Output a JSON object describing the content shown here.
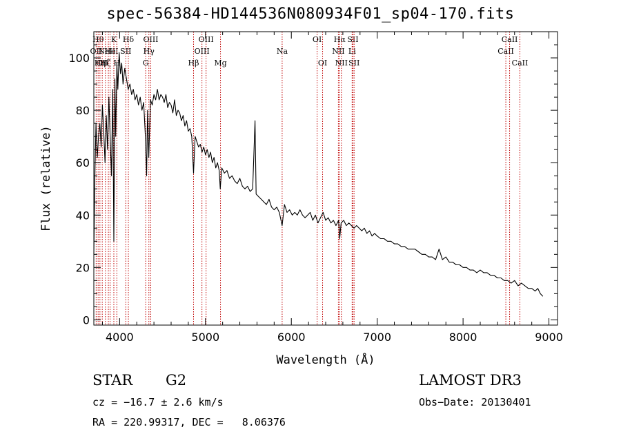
{
  "chart_data": {
    "type": "line",
    "title": "spec-56384-HD144536N080934F01_sp04-170.fits",
    "xlabel": "Wavelength (Å)",
    "ylabel": "Flux (relative)",
    "xlim": [
      3700,
      9100
    ],
    "ylim": [
      -2,
      110
    ],
    "xticks": [
      4000,
      5000,
      6000,
      7000,
      8000,
      9000
    ],
    "xtick_labels": [
      "4000",
      "5000",
      "6000",
      "7000",
      "8000",
      "9000"
    ],
    "yticks": [
      0,
      20,
      40,
      60,
      80,
      100
    ],
    "ytick_labels": [
      "0",
      "20",
      "40",
      "60",
      "80",
      "100"
    ],
    "series": [
      {
        "name": "spectrum",
        "color": "#000000",
        "x": [
          3700,
          3712,
          3725,
          3740,
          3755,
          3770,
          3785,
          3800,
          3815,
          3830,
          3845,
          3860,
          3875,
          3890,
          3905,
          3920,
          3933,
          3945,
          3955,
          3968,
          3980,
          3995,
          4010,
          4025,
          4040,
          4060,
          4080,
          4100,
          4120,
          4140,
          4160,
          4180,
          4200,
          4220,
          4240,
          4260,
          4280,
          4300,
          4315,
          4325,
          4340,
          4360,
          4380,
          4400,
          4420,
          4440,
          4460,
          4480,
          4500,
          4520,
          4540,
          4560,
          4580,
          4600,
          4620,
          4640,
          4660,
          4680,
          4700,
          4720,
          4740,
          4760,
          4780,
          4800,
          4820,
          4840,
          4861,
          4880,
          4900,
          4920,
          4940,
          4960,
          4980,
          5000,
          5020,
          5040,
          5060,
          5080,
          5100,
          5120,
          5140,
          5160,
          5172,
          5190,
          5220,
          5250,
          5280,
          5310,
          5340,
          5370,
          5400,
          5430,
          5460,
          5490,
          5520,
          5550,
          5577,
          5590,
          5620,
          5650,
          5680,
          5710,
          5740,
          5770,
          5800,
          5830,
          5860,
          5893,
          5920,
          5950,
          5980,
          6010,
          6040,
          6070,
          6100,
          6130,
          6160,
          6190,
          6220,
          6250,
          6280,
          6310,
          6340,
          6370,
          6400,
          6430,
          6460,
          6490,
          6520,
          6550,
          6563,
          6580,
          6610,
          6640,
          6670,
          6700,
          6730,
          6760,
          6790,
          6820,
          6850,
          6880,
          6910,
          6940,
          6970,
          7000,
          7040,
          7080,
          7120,
          7160,
          7200,
          7240,
          7280,
          7320,
          7360,
          7400,
          7440,
          7480,
          7520,
          7560,
          7600,
          7640,
          7680,
          7720,
          7760,
          7800,
          7840,
          7880,
          7920,
          7960,
          8000,
          8040,
          8080,
          8120,
          8160,
          8200,
          8240,
          8280,
          8320,
          8360,
          8400,
          8440,
          8480,
          8520,
          8560,
          8600,
          8640,
          8680,
          8720,
          8760,
          8800,
          8840,
          8870,
          8900,
          8930
        ],
        "values": [
          25,
          55,
          75,
          62,
          70,
          75,
          66,
          82,
          72,
          60,
          78,
          65,
          85,
          70,
          55,
          88,
          30,
          92,
          70,
          98,
          88,
          102,
          94,
          98,
          90,
          96,
          92,
          88,
          90,
          86,
          88,
          84,
          86,
          82,
          85,
          80,
          83,
          70,
          55,
          80,
          62,
          84,
          82,
          86,
          84,
          88,
          84,
          86,
          85,
          83,
          86,
          81,
          83,
          82,
          79,
          84,
          78,
          80,
          79,
          76,
          78,
          74,
          76,
          72,
          73,
          70,
          56,
          70,
          68,
          66,
          67,
          64,
          66,
          63,
          65,
          62,
          64,
          60,
          62,
          58,
          60,
          57,
          50,
          58,
          56,
          57,
          54,
          55,
          53,
          52,
          54,
          51,
          50,
          51,
          49,
          50,
          76,
          48,
          47,
          46,
          45,
          44,
          46,
          43,
          42,
          43,
          41,
          36,
          44,
          41,
          42,
          40,
          41,
          40,
          42,
          40,
          39,
          40,
          41,
          38,
          40,
          37,
          39,
          41,
          38,
          39,
          37,
          38,
          36,
          38,
          31,
          37,
          38,
          36,
          37,
          36,
          35,
          36,
          35,
          34,
          35,
          33,
          34,
          32,
          33,
          32,
          31,
          31,
          30,
          30,
          29,
          29,
          28,
          28,
          27,
          27,
          27,
          26,
          25,
          25,
          24,
          24,
          23,
          27,
          23,
          24,
          22,
          22,
          21,
          21,
          20,
          20,
          19,
          19,
          18,
          19,
          18,
          18,
          17,
          17,
          16,
          16,
          15,
          15,
          14,
          15,
          13,
          14,
          13,
          12,
          12,
          11,
          12,
          10,
          9
        ]
      }
    ],
    "line_markers": [
      {
        "x": 3727,
        "label": "OII",
        "row": 1
      },
      {
        "x": 3750,
        "label": "Hθ",
        "row": 0
      },
      {
        "x": 3771,
        "label": "Hη",
        "row": 2
      },
      {
        "x": 3798,
        "label": "OII",
        "row": 2
      },
      {
        "x": 3835,
        "label": "Hζ",
        "row": 2
      },
      {
        "x": 3869,
        "label": "NeIII",
        "row": 1
      },
      {
        "x": 3889,
        "label": "He",
        "row": 1
      },
      {
        "x": 3933,
        "label": "K",
        "row": 0
      },
      {
        "x": 3968,
        "label": "H",
        "row": 2
      },
      {
        "x": 4072,
        "label": "SII",
        "row": 1
      },
      {
        "x": 4102,
        "label": "Hδ",
        "row": 0
      },
      {
        "x": 4304,
        "label": "G",
        "row": 2
      },
      {
        "x": 4341,
        "label": "Hγ",
        "row": 1
      },
      {
        "x": 4363,
        "label": "OIII",
        "row": 0
      },
      {
        "x": 4861,
        "label": "Hβ",
        "row": 2
      },
      {
        "x": 4959,
        "label": "OIII",
        "row": 1
      },
      {
        "x": 5007,
        "label": "OIII",
        "row": 0
      },
      {
        "x": 5175,
        "label": "Mg",
        "row": 2
      },
      {
        "x": 5893,
        "label": "Na",
        "row": 1
      },
      {
        "x": 6300,
        "label": "OI",
        "row": 0
      },
      {
        "x": 6364,
        "label": "OI",
        "row": 2
      },
      {
        "x": 6548,
        "label": "NII",
        "row": 1
      },
      {
        "x": 6563,
        "label": "Hα",
        "row": 0
      },
      {
        "x": 6583,
        "label": "NII",
        "row": 2
      },
      {
        "x": 6708,
        "label": "Li",
        "row": 1
      },
      {
        "x": 6717,
        "label": "SII",
        "row": 0
      },
      {
        "x": 6731,
        "label": "SII",
        "row": 2
      },
      {
        "x": 8498,
        "label": "CaII",
        "row": 1
      },
      {
        "x": 8542,
        "label": "CaII",
        "row": 0
      },
      {
        "x": 8662,
        "label": "CaII",
        "row": 2
      }
    ],
    "marker_color": "#c00000"
  },
  "info": {
    "class_label": "STAR",
    "subclass": "G2",
    "survey": "LAMOST DR3",
    "redshift_line": "cz = −16.7 ± 2.6 km/s",
    "obs_date_line": "Obs−Date: 20130401",
    "coords_line": "RA = 220.99317, DEC =   8.06376"
  }
}
